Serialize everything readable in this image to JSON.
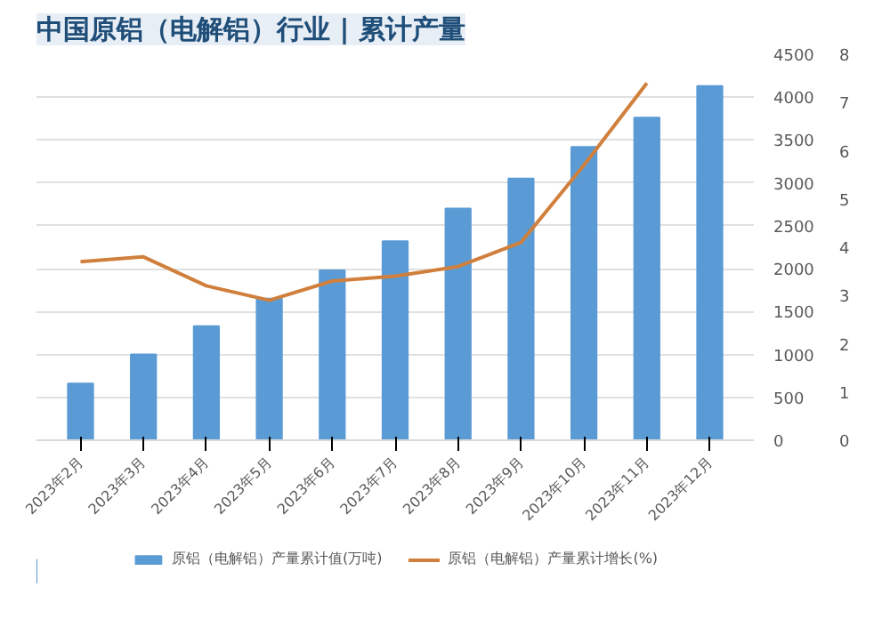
{
  "chart_data": {
    "type": "bar",
    "title": "中国原铝（电解铝）行业 | 累计产量",
    "categories": [
      "2023年2月",
      "2023年3月",
      "2023年4月",
      "2023年5月",
      "2023年6月",
      "2023年7月",
      "2023年8月",
      "2023年9月",
      "2023年10月",
      "2023年11月",
      "2023年12月"
    ],
    "series": [
      {
        "name": "原铝（电解铝）产量累计值(万吨)",
        "color": "#5b9bd5",
        "values": [
          660,
          1000,
          1330,
          1650,
          1980,
          2320,
          2700,
          3050,
          3420,
          3760,
          4130
        ]
      },
      {
        "name": "原铝（电解铝）产量累计增长(%)",
        "type": "line",
        "axis": "y2",
        "color": "#d0803c",
        "values": [
          3.7,
          3.8,
          3.2,
          2.9,
          3.3,
          3.4,
          3.6,
          4.1,
          5.7,
          7.4,
          null
        ]
      }
    ],
    "ylim": [
      0,
      4500
    ],
    "yticks": [
      0,
      500,
      1000,
      1500,
      2000,
      2500,
      3000,
      3500,
      4000,
      4500
    ],
    "y2lim": [
      0,
      8
    ],
    "y2ticks": [
      0,
      1,
      2,
      3,
      4,
      5,
      6,
      7,
      8
    ],
    "grid": "y",
    "legend": "bottom"
  }
}
